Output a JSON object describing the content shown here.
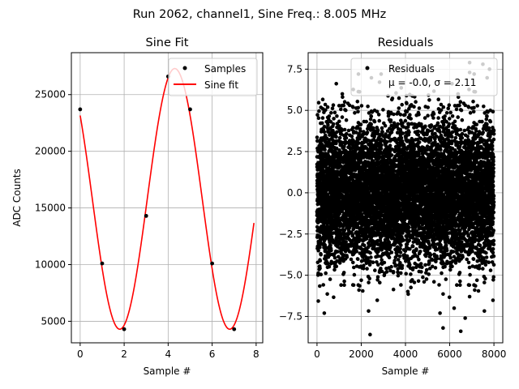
{
  "suptitle": "Run 2062, channel1, Sine Freq.: 8.005 MHz",
  "colors": {
    "fit": "#ff0000",
    "points": "#000000",
    "grid": "#b0b0b0"
  },
  "chart_data": [
    {
      "type": "line",
      "title": "Sine Fit",
      "xlabel": "Sample #",
      "ylabel": "ADC Counts",
      "xlim": [
        -0.4,
        8.3
      ],
      "ylim": [
        3100,
        28700
      ],
      "xticks": [
        0,
        2,
        4,
        6,
        8
      ],
      "yticks": [
        5000,
        10000,
        15000,
        20000,
        25000
      ],
      "grid": true,
      "legend": {
        "position": "upper right",
        "entries": [
          "Samples",
          "Sine fit"
        ]
      },
      "samples": {
        "name": "Samples",
        "x": [
          0,
          1,
          2,
          3,
          4,
          5,
          6,
          7
        ],
        "y": [
          23700,
          10100,
          4300,
          14300,
          26600,
          23700,
          10100,
          4300
        ]
      },
      "fit": {
        "name": "Sine fit",
        "offset": 15800,
        "amplitude": 11500,
        "period_samples": 4.996875,
        "peak_at_sample": 4.3,
        "x_range": [
          0,
          7.9
        ]
      }
    },
    {
      "type": "scatter",
      "title": "Residuals",
      "xlabel": "Sample #",
      "ylabel": "",
      "xlim": [
        -400,
        8400
      ],
      "ylim": [
        -9.1,
        8.5
      ],
      "xticks": [
        0,
        2000,
        4000,
        6000,
        8000
      ],
      "yticks": [
        -7.5,
        -5.0,
        -2.5,
        0.0,
        2.5,
        5.0,
        7.5
      ],
      "grid": true,
      "legend": {
        "position": "upper right",
        "entries": [
          "Residuals",
          "μ = -0.0, σ = 2.11"
        ]
      },
      "stats": {
        "mean": -0.0,
        "sigma": 2.11,
        "n_points": 8000
      },
      "outliers": {
        "x": [
          2400,
          6900,
          7500,
          6500,
          6700,
          5700,
          6900,
          7800,
          6200,
          6900
        ],
        "y": [
          -8.6,
          7.9,
          7.8,
          -8.4,
          -7.6,
          -8.2,
          -6.3,
          7.5,
          -7.0,
          7.3
        ]
      }
    }
  ]
}
